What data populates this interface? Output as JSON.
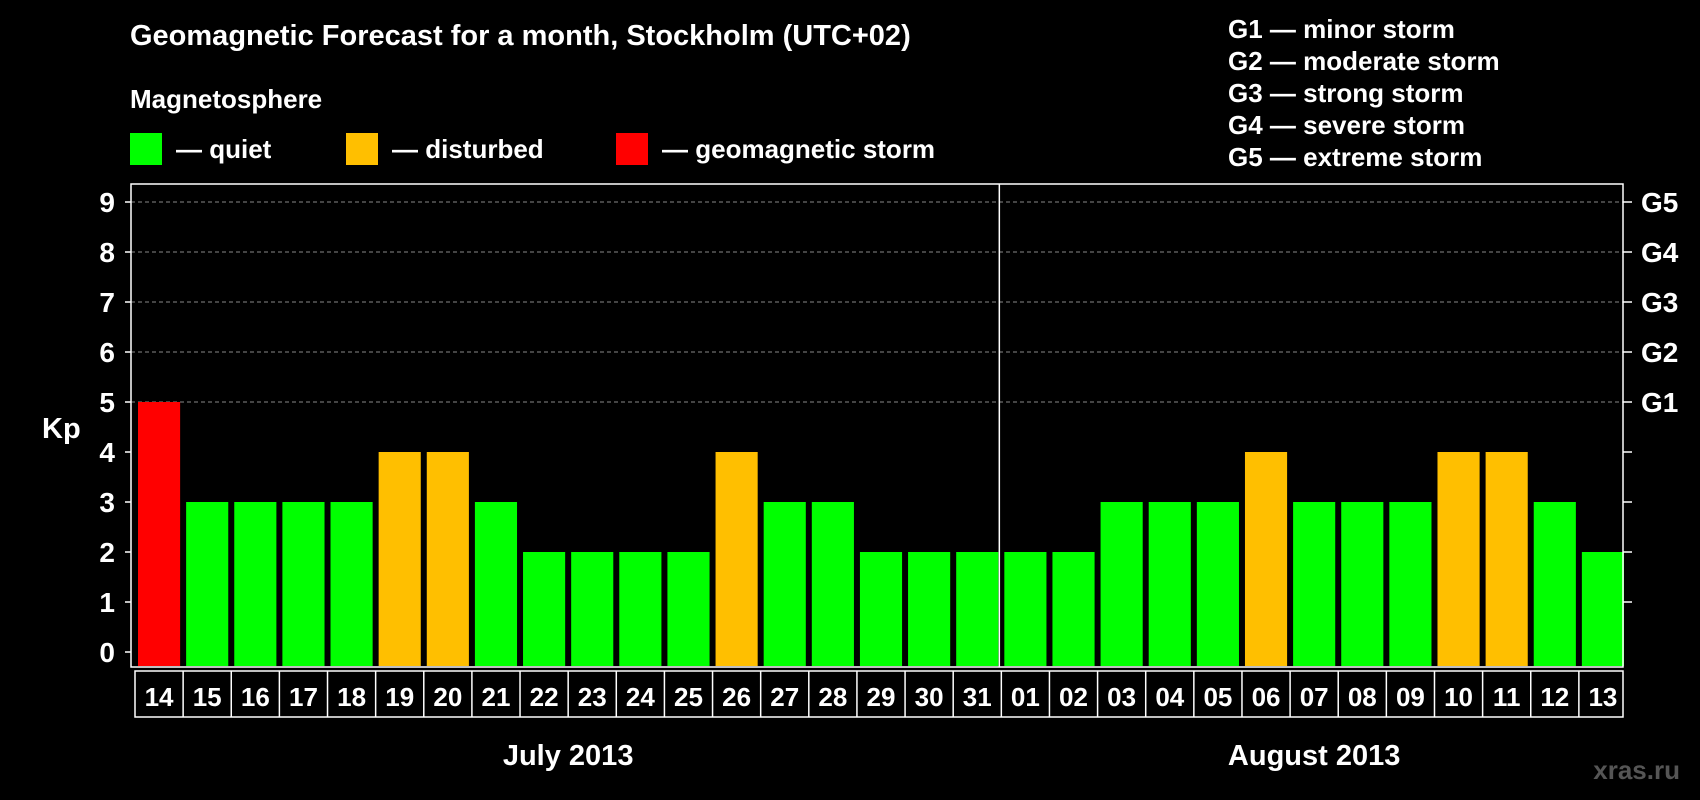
{
  "header": {
    "title": "Geomagnetic Forecast for a month, Stockholm (UTC+02)",
    "subtitle": "Magnetosphere"
  },
  "legend": [
    {
      "label": "— quiet",
      "color": "#00ff00"
    },
    {
      "label": "— disturbed",
      "color": "#ffbf00"
    },
    {
      "label": "— geomagnetic storm",
      "color": "#ff0000"
    }
  ],
  "storm_scale": [
    "G1 — minor storm",
    "G2 — moderate storm",
    "G3 — strong storm",
    "G4 — severe storm",
    "G5 — extreme storm"
  ],
  "watermark": "xras.ru",
  "chart_data": {
    "type": "bar",
    "ylabel": "Kp",
    "ylim": [
      0,
      9
    ],
    "yticks": [
      0,
      1,
      2,
      3,
      4,
      5,
      6,
      7,
      8,
      9
    ],
    "right_axis_labels": [
      {
        "value": 5,
        "label": "G1"
      },
      {
        "value": 6,
        "label": "G2"
      },
      {
        "value": 7,
        "label": "G3"
      },
      {
        "value": 8,
        "label": "G4"
      },
      {
        "value": 9,
        "label": "G5"
      }
    ],
    "categories": [
      "14",
      "15",
      "16",
      "17",
      "18",
      "19",
      "20",
      "21",
      "22",
      "23",
      "24",
      "25",
      "26",
      "27",
      "28",
      "29",
      "30",
      "31",
      "01",
      "02",
      "03",
      "04",
      "05",
      "06",
      "07",
      "08",
      "09",
      "10",
      "11",
      "12",
      "13"
    ],
    "values": [
      5,
      3,
      3,
      3,
      3,
      4,
      4,
      3,
      2,
      2,
      2,
      2,
      4,
      3,
      3,
      2,
      2,
      2,
      2,
      2,
      3,
      3,
      3,
      4,
      3,
      3,
      3,
      4,
      4,
      3,
      2
    ],
    "months": [
      {
        "label": "July 2013",
        "start_index": 0,
        "end_index": 17
      },
      {
        "label": "August 2013",
        "start_index": 18,
        "end_index": 30
      }
    ],
    "colors": {
      "quiet": "#00ff00",
      "disturbed": "#ffbf00",
      "storm": "#ff0000"
    },
    "grid": true
  }
}
